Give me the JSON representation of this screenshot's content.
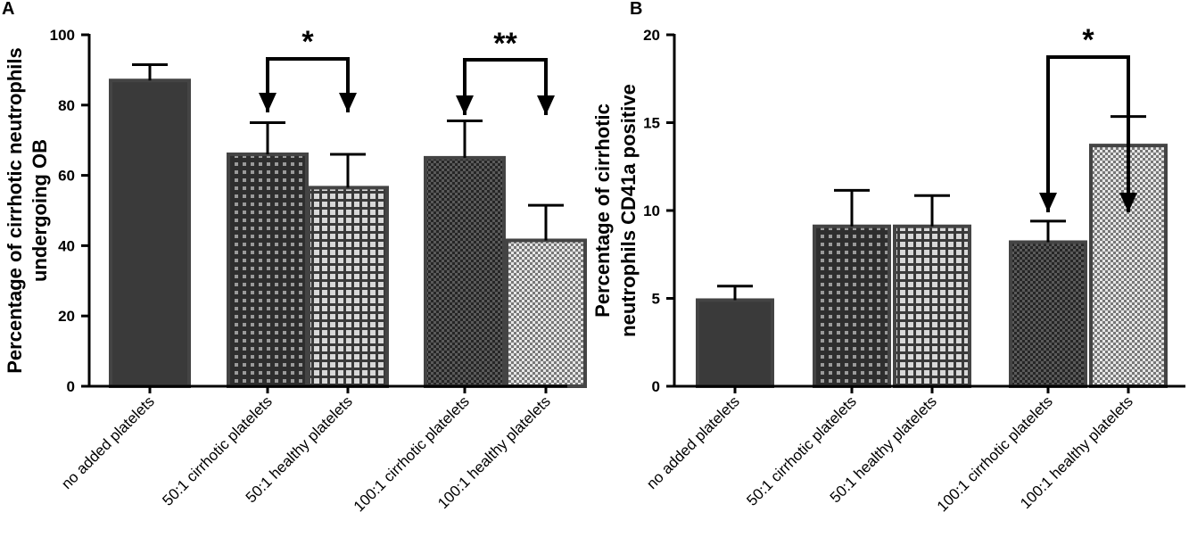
{
  "chart_data": [
    {
      "panel": "A",
      "type": "bar",
      "ylabel_line1": "Percentage of cirrhotic neutrophils",
      "ylabel_line2": "undergoing  OB",
      "ylim": [
        0,
        100
      ],
      "yticks": [
        "0",
        "20",
        "40",
        "60",
        "80",
        "100"
      ],
      "categories": [
        "no added platelets",
        "50:1 cirrhotic platelets",
        "50:1 healthy platelets",
        "100:1 cirrhotic platelets",
        "100:1 healthy platelets"
      ],
      "values": [
        87,
        66,
        56.5,
        65,
        41.5
      ],
      "errors": [
        4.5,
        9,
        9.5,
        10.5,
        10
      ],
      "fills": [
        "solid",
        "grid-dark",
        "grid-light",
        "check-dark",
        "check-light"
      ],
      "significance": [
        {
          "from": 1,
          "to": 2,
          "label": "*"
        },
        {
          "from": 3,
          "to": 4,
          "label": "**"
        }
      ]
    },
    {
      "panel": "B",
      "type": "bar",
      "ylabel_line1": "Percentage of cirrhotic",
      "ylabel_line2": "neutrophils CD41a positive",
      "ylim": [
        0,
        20
      ],
      "yticks": [
        "0",
        "5",
        "10",
        "15",
        "20"
      ],
      "categories": [
        "no added platelets",
        "50:1 cirrhotic platelets",
        "50:1 healthy platelets",
        "100:1 cirrhotic platelets",
        "100:1 healthy platelets"
      ],
      "values": [
        4.9,
        9.1,
        9.1,
        8.2,
        13.7
      ],
      "errors": [
        0.8,
        2.05,
        1.75,
        1.2,
        1.65
      ],
      "fills": [
        "solid",
        "grid-dark",
        "grid-light",
        "check-dark",
        "check-light"
      ],
      "significance": [
        {
          "from": 3,
          "to": 4,
          "label": "*"
        }
      ]
    }
  ],
  "colors": {
    "bar_dark": "#3a3a3a",
    "bar_stroke": "#444444",
    "axis": "#000000"
  }
}
